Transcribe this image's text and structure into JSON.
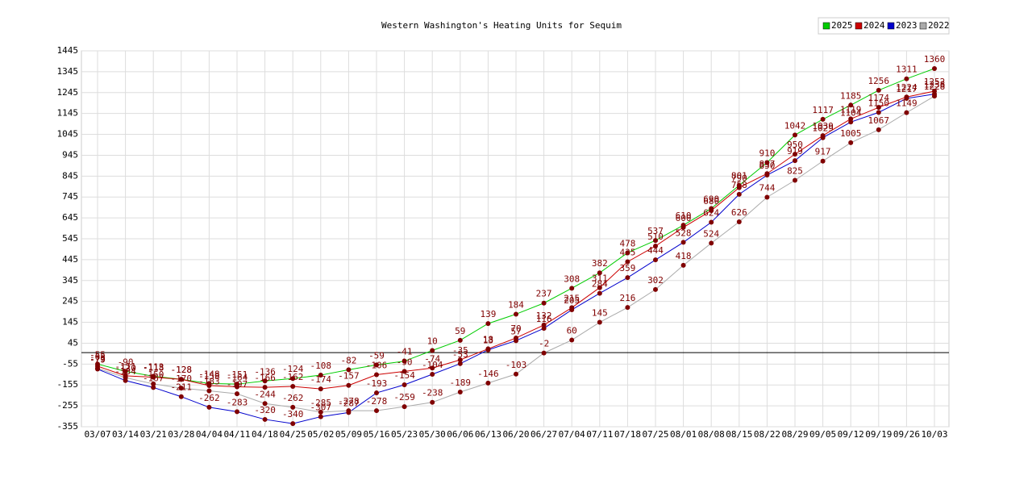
{
  "chart_data": {
    "type": "line",
    "title": "Western Washington's Heating Units for Sequim",
    "categories": [
      "03/07",
      "03/14",
      "03/21",
      "03/28",
      "04/04",
      "04/11",
      "04/18",
      "04/25",
      "05/02",
      "05/09",
      "05/16",
      "05/23",
      "05/30",
      "06/06",
      "06/13",
      "06/20",
      "06/27",
      "07/04",
      "07/11",
      "07/18",
      "07/25",
      "08/01",
      "08/08",
      "08/15",
      "08/22",
      "08/29",
      "09/05",
      "09/12",
      "09/19",
      "09/26",
      "10/03"
    ],
    "series": [
      {
        "name": "2025",
        "color": "#00cc00",
        "values": [
          -55,
          -90,
          -113,
          -128,
          -148,
          -151,
          -136,
          -124,
          -108,
          -82,
          -59,
          -41,
          10,
          59,
          139,
          184,
          237,
          308,
          382,
          478,
          537,
          610,
          690,
          801,
          910,
          1042,
          1117,
          1185,
          1256,
          1311,
          1360
        ]
      },
      {
        "name": "2024",
        "color": "#cc0000",
        "values": [
          -65,
          -111,
          -118,
          -128,
          -158,
          -164,
          -166,
          -162,
          -174,
          -157,
          -106,
          -90,
          -74,
          -35,
          18,
          70,
          132,
          215,
          311,
          435,
          510,
          600,
          680,
          790,
          857,
          950,
          1039,
          1119,
          1174,
          1224,
          1252
        ]
      },
      {
        "name": "2023",
        "color": "#0000cc",
        "values": [
          -79,
          -134,
          -167,
          -211,
          -262,
          -283,
          -320,
          -340,
          -307,
          -287,
          -193,
          -154,
          -104,
          -53,
          13,
          57,
          116,
          205,
          284,
          359,
          444,
          528,
          624,
          758,
          850,
          919,
          1029,
          1104,
          1150,
          1217,
          1238
        ]
      },
      {
        "name": "2022",
        "color": "#aaaaaa",
        "values": [
          -75,
          -120,
          -150,
          -170,
          -183,
          -197,
          -244,
          -262,
          -285,
          -278,
          -278,
          -259,
          -238,
          -189,
          -146,
          -103,
          -2,
          60,
          145,
          216,
          302,
          418,
          524,
          626,
          744,
          825,
          917,
          1005,
          1067,
          1149,
          1228
        ]
      }
    ],
    "ylim": [
      -355,
      1445
    ],
    "yticks": [
      -355,
      -255,
      -155,
      -55,
      45,
      145,
      245,
      345,
      445,
      545,
      645,
      745,
      845,
      945,
      1045,
      1145,
      1245,
      1345,
      1445
    ],
    "grid": true,
    "legend": "top-right",
    "marker_color": "#800000"
  }
}
